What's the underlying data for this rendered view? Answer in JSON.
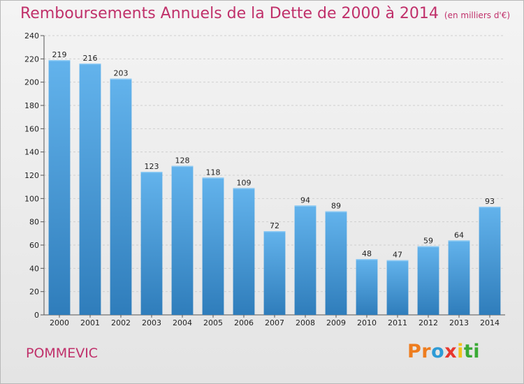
{
  "header": {
    "title": "Remboursements Annuels de la Dette de 2000 à 2014",
    "unit": "(en milliers d'€)"
  },
  "footer": {
    "commune": "POMMEVIC",
    "logo_text": "Proxiti"
  },
  "colors": {
    "title": "#c0306a",
    "bar_top": "#63b3ec",
    "bar_bottom": "#2f7dbb"
  },
  "chart_data": {
    "type": "bar",
    "title": "Remboursements Annuels de la Dette de 2000 à 2014",
    "subtitle": "(en milliers d'€)",
    "xlabel": "",
    "ylabel": "",
    "categories": [
      "2000",
      "2001",
      "2002",
      "2003",
      "2004",
      "2005",
      "2006",
      "2007",
      "2008",
      "2009",
      "2010",
      "2011",
      "2012",
      "2013",
      "2014"
    ],
    "values": [
      219,
      216,
      203,
      123,
      128,
      118,
      109,
      72,
      94,
      89,
      48,
      47,
      59,
      64,
      93
    ],
    "ylim": [
      0,
      240
    ],
    "yticks": [
      0,
      20,
      40,
      60,
      80,
      100,
      120,
      140,
      160,
      180,
      200,
      220,
      240
    ],
    "grid": true,
    "legend": "none"
  }
}
